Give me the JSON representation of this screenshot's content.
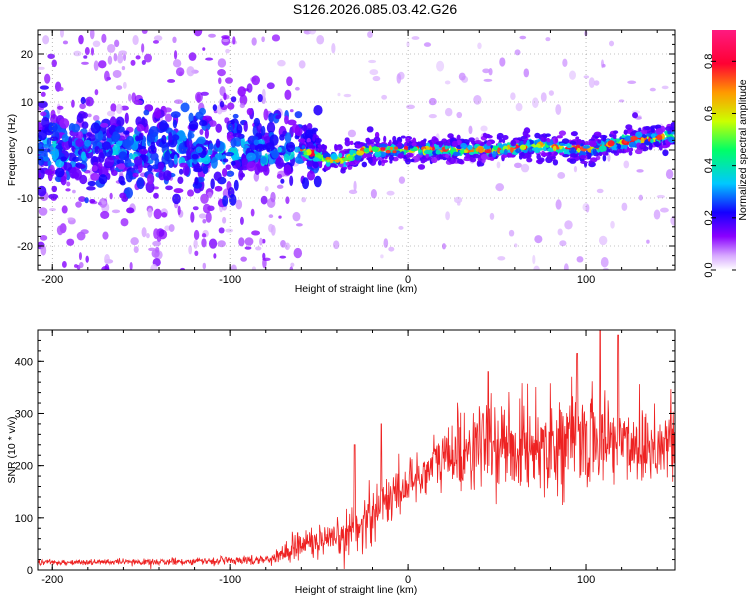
{
  "title": "S126.2026.085.03.42.G26",
  "chart_data": [
    {
      "type": "heatmap",
      "title": "S126.2026.085.03.42.G26",
      "xlabel": "Height of straight line (km)",
      "ylabel": "Frequency (Hz)",
      "xlim": [
        -208,
        150
      ],
      "ylim": [
        -25,
        25
      ],
      "xticks": [
        -200,
        -100,
        0,
        100
      ],
      "yticks": [
        -20,
        -10,
        0,
        10,
        20
      ],
      "colorbar": {
        "label": "Normalized spectral amplitude",
        "range": [
          0,
          0.92
        ],
        "ticks": [
          0.0,
          0.2,
          0.4,
          0.6,
          0.8
        ],
        "colormap": [
          "#ffffff",
          "#8a00ff",
          "#1400ff",
          "#00c8ff",
          "#00ff66",
          "#ccff00",
          "#ff9900",
          "#ff0033",
          "#ff1a80"
        ]
      },
      "ridge": {
        "description_points_x": [
          -208,
          -100,
          -80,
          -60,
          -45,
          -35,
          -25,
          0,
          25,
          50,
          75,
          100,
          125,
          150
        ],
        "frequency_y": [
          0,
          0,
          1,
          0,
          -2,
          -2,
          0,
          0,
          0,
          0,
          1,
          0,
          2,
          3
        ]
      },
      "grid": true
    },
    {
      "type": "line",
      "xlabel": "Height of straight line (km)",
      "ylabel": "SNR (10 * v/v)",
      "xlim": [
        -208,
        150
      ],
      "ylim": [
        0,
        460
      ],
      "xticks": [
        -200,
        -100,
        0,
        100
      ],
      "yticks": [
        0,
        100,
        200,
        300,
        400
      ],
      "color": "#ee2222",
      "envelope": {
        "x": [
          -208,
          -150,
          -100,
          -80,
          -70,
          -60,
          -50,
          -40,
          -30,
          -20,
          -10,
          0,
          10,
          20,
          40,
          60,
          80,
          100,
          120,
          150
        ],
        "mean": [
          15,
          15,
          18,
          20,
          30,
          55,
          50,
          55,
          80,
          110,
          140,
          165,
          190,
          215,
          240,
          235,
          245,
          250,
          245,
          240
        ],
        "spread": [
          5,
          5,
          6,
          8,
          15,
          30,
          25,
          30,
          45,
          50,
          40,
          35,
          45,
          60,
          70,
          70,
          75,
          80,
          75,
          70
        ]
      },
      "peaks": [
        {
          "x": -30,
          "y": 240
        },
        {
          "x": -15,
          "y": 280
        },
        {
          "x": 45,
          "y": 380
        },
        {
          "x": 95,
          "y": 415
        },
        {
          "x": 108,
          "y": 460
        },
        {
          "x": 118,
          "y": 450
        }
      ],
      "grid": false
    }
  ]
}
